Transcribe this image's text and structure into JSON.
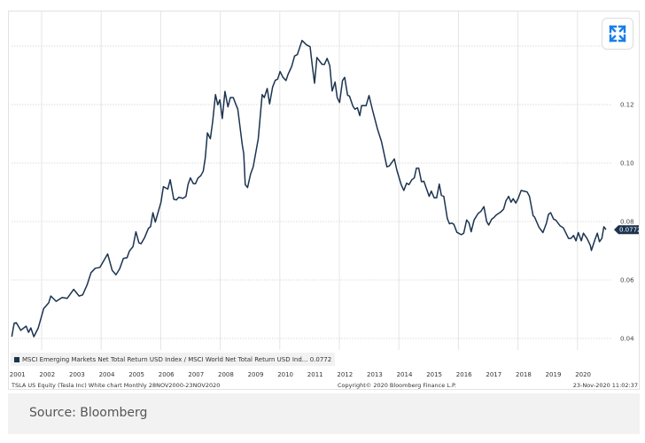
{
  "chart_data": {
    "type": "line",
    "title": "",
    "xlabel": "",
    "ylabel": "",
    "ylim": [
      0.04,
      0.14
    ],
    "yticks": [
      "0.04",
      "0.06",
      "0.08",
      "0.10",
      "0.12"
    ],
    "xticks": [
      "2001",
      "2002",
      "2003",
      "2004",
      "2005",
      "2006",
      "2007",
      "2008",
      "2009",
      "2010",
      "2011",
      "2012",
      "2013",
      "2014",
      "2015",
      "2016",
      "2017",
      "2018",
      "2019",
      "2020"
    ],
    "grid": true,
    "legend_position": "bottom-left",
    "last_value_label": "0.0772",
    "series": [
      {
        "name": "MSCI Emerging Markets Net Total Return USD Index / MSCI World Net Total Return USD Ind... 0.0772",
        "color": "#1c3350",
        "x": [
          2000.84,
          2000.92,
          2000.99,
          2001.14,
          2001.32,
          2001.4,
          2001.48,
          2001.58,
          2001.73,
          2001.91,
          2002.08,
          2002.15,
          2002.33,
          2002.53,
          2002.7,
          2002.92,
          2003.1,
          2003.22,
          2003.37,
          2003.5,
          2003.64,
          2003.8,
          2004.06,
          2004.21,
          2004.34,
          2004.46,
          2004.59,
          2004.71,
          2004.79,
          2004.91,
          2005.01,
          2005.11,
          2005.18,
          2005.3,
          2005.43,
          2005.5,
          2005.58,
          2005.66,
          2005.85,
          2005.93,
          2006.08,
          2006.16,
          2006.28,
          2006.37,
          2006.45,
          2006.59,
          2006.69,
          2006.76,
          2006.84,
          2006.94,
          2007.01,
          2007.09,
          2007.19,
          2007.27,
          2007.34,
          2007.41,
          2007.51,
          2007.59,
          2007.68,
          2007.76,
          2007.83,
          2007.91,
          2008.0,
          2008.1,
          2008.18,
          2008.28,
          2008.36,
          2008.43,
          2008.58,
          2008.63,
          2008.68,
          2008.76,
          2008.86,
          2008.95,
          2009.12,
          2009.25,
          2009.32,
          2009.42,
          2009.5,
          2009.6,
          2009.69,
          2009.77,
          2009.85,
          2009.95,
          2010.05,
          2010.12,
          2010.24,
          2010.34,
          2010.43,
          2010.59,
          2010.74,
          2010.86,
          2010.93,
          2011.01,
          2011.09,
          2011.26,
          2011.34,
          2011.43,
          2011.52,
          2011.6,
          2011.7,
          2011.77,
          2011.85,
          2011.95,
          2012.02,
          2012.12,
          2012.18,
          2012.3,
          2012.37,
          2012.45,
          2012.53,
          2012.59,
          2012.74,
          2012.84,
          2012.94,
          2013.12,
          2013.26,
          2013.44,
          2013.52,
          2013.69,
          2013.77,
          2013.92,
          2014.01,
          2014.1,
          2014.18,
          2014.28,
          2014.36,
          2014.43,
          2014.51,
          2014.6,
          2014.68,
          2014.86,
          2014.93,
          2015.03,
          2015.11,
          2015.2,
          2015.27,
          2015.35,
          2015.47,
          2015.54,
          2015.62,
          2015.69,
          2015.79,
          2015.94,
          2016.02,
          2016.12,
          2016.2,
          2016.27,
          2016.37,
          2016.5,
          2016.6,
          2016.7,
          2016.79,
          2016.86,
          2016.96,
          2017.03,
          2017.11,
          2017.26,
          2017.36,
          2017.44,
          2017.53,
          2017.61,
          2017.68,
          2017.77,
          2017.85,
          2017.95,
          2018.08,
          2018.15,
          2018.23,
          2018.35,
          2018.4,
          2018.55,
          2018.68,
          2018.8,
          2018.87,
          2018.94,
          2019.04,
          2019.11,
          2019.26,
          2019.37,
          2019.54,
          2019.62,
          2019.71,
          2019.79,
          2019.87,
          2019.97,
          2020.04,
          2020.16,
          2020.27,
          2020.31,
          2020.43,
          2020.51,
          2020.58,
          2020.66,
          2020.73,
          2020.8
        ],
        "y": [
          0.0406,
          0.0452,
          0.0454,
          0.0428,
          0.0442,
          0.0421,
          0.0436,
          0.0406,
          0.0436,
          0.0502,
          0.0522,
          0.0545,
          0.0527,
          0.054,
          0.0537,
          0.0568,
          0.0545,
          0.0549,
          0.0583,
          0.0625,
          0.064,
          0.0643,
          0.0689,
          0.0633,
          0.0618,
          0.0638,
          0.0674,
          0.0676,
          0.0699,
          0.0714,
          0.0765,
          0.0727,
          0.0724,
          0.0745,
          0.0777,
          0.0782,
          0.083,
          0.0798,
          0.0866,
          0.0919,
          0.0911,
          0.0943,
          0.0876,
          0.0874,
          0.0883,
          0.0879,
          0.0886,
          0.0926,
          0.0949,
          0.0929,
          0.0929,
          0.0948,
          0.0957,
          0.0972,
          0.1018,
          0.1103,
          0.1083,
          0.1143,
          0.1234,
          0.1199,
          0.1216,
          0.1152,
          0.1245,
          0.1192,
          0.1224,
          0.1224,
          0.1202,
          0.1184,
          0.1063,
          0.1032,
          0.0926,
          0.0916,
          0.0962,
          0.0987,
          0.1083,
          0.1234,
          0.1224,
          0.1255,
          0.1202,
          0.126,
          0.1283,
          0.1287,
          0.1313,
          0.1293,
          0.1282,
          0.1303,
          0.133,
          0.1366,
          0.1371,
          0.1419,
          0.1404,
          0.1398,
          0.1335,
          0.1273,
          0.1361,
          0.1338,
          0.1337,
          0.1358,
          0.1333,
          0.1246,
          0.1277,
          0.1224,
          0.1207,
          0.1282,
          0.1293,
          0.1232,
          0.1229,
          0.1194,
          0.1184,
          0.1189,
          0.1162,
          0.1196,
          0.1196,
          0.1231,
          0.1188,
          0.1118,
          0.1073,
          0.0987,
          0.099,
          0.1014,
          0.0977,
          0.0926,
          0.0906,
          0.0931,
          0.0926,
          0.0943,
          0.0949,
          0.0982,
          0.0982,
          0.0936,
          0.0938,
          0.0886,
          0.0904,
          0.0881,
          0.0881,
          0.0928,
          0.0889,
          0.0886,
          0.081,
          0.0792,
          0.0795,
          0.079,
          0.0763,
          0.0755,
          0.076,
          0.0805,
          0.0795,
          0.0765,
          0.0805,
          0.0827,
          0.0835,
          0.0851,
          0.08,
          0.0788,
          0.0808,
          0.0813,
          0.0822,
          0.0832,
          0.0842,
          0.0871,
          0.0886,
          0.0866,
          0.0878,
          0.0863,
          0.0879,
          0.0906,
          0.0903,
          0.0901,
          0.0886,
          0.082,
          0.0815,
          0.078,
          0.0762,
          0.0795,
          0.0825,
          0.083,
          0.0808,
          0.0805,
          0.0785,
          0.0778,
          0.0742,
          0.0742,
          0.0752,
          0.0734,
          0.0762,
          0.0734,
          0.076,
          0.0742,
          0.0719,
          0.0701,
          0.0739,
          0.076,
          0.0731,
          0.0742,
          0.0782,
          0.0772
        ]
      }
    ]
  },
  "legend": {
    "label": "MSCI Emerging Markets Net Total Return USD Index / MSCI World Net Total Return USD Ind... 0.0772"
  },
  "footer": {
    "left": "TSLA US Equity (Tesla Inc) White chart  Monthly 28NOV2000-23NOV2020",
    "center": "Copyright© 2020 Bloomberg Finance L.P.",
    "right": "23-Nov-2020 11:02:37"
  },
  "source": "Source: Bloomberg",
  "icons": {
    "expand": "expand-arrows-icon"
  },
  "colors": {
    "line": "#1c3350",
    "accent": "#1a7fe8",
    "source_bg": "#f2f2f2"
  }
}
